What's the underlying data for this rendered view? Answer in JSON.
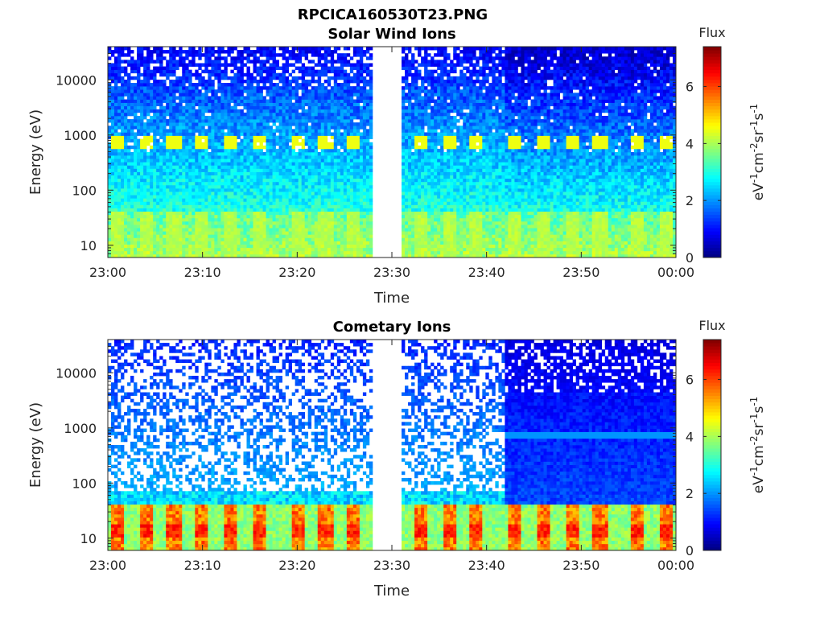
{
  "figure": {
    "title": "RPCICA160530T23.PNG"
  },
  "colormap": "jet",
  "chart_data": [
    {
      "type": "heatmap",
      "title": "Solar Wind Ions",
      "xlabel": "Time",
      "ylabel": "Energy (eV)",
      "x_ticks": [
        "23:00",
        "23:10",
        "23:20",
        "23:30",
        "23:40",
        "23:50",
        "00:00"
      ],
      "xlim": [
        "23:00",
        "00:00"
      ],
      "y_scale": "log",
      "y_ticks": [
        10,
        100,
        1000,
        10000
      ],
      "y_tick_labels": [
        "10",
        "100",
        "1000",
        "10000"
      ],
      "ylim": [
        6,
        40000
      ],
      "data_gap": [
        "23:28",
        "23:31"
      ],
      "colorbar": {
        "title": "Flux",
        "label": "eV-1cm-2sr-1s-1",
        "label_parts": [
          "eV",
          "-1",
          "cm",
          "-2",
          "sr",
          "-1",
          "s",
          "-1"
        ],
        "range": [
          0,
          7.4
        ],
        "ticks": [
          0,
          2,
          4,
          6
        ]
      },
      "features": {
        "periodic_peaks_energy_eV": 700,
        "periodic_peaks_times": [
          "23:01",
          "23:04",
          "23:07",
          "23:10",
          "23:13",
          "23:16",
          "23:20",
          "23:23",
          "23:26",
          "23:33",
          "23:36",
          "23:39",
          "23:43",
          "23:46",
          "23:49",
          "23:52",
          "23:56",
          "23:59"
        ],
        "low_energy_band_eV": [
          6,
          40
        ]
      }
    },
    {
      "type": "heatmap",
      "title": "Cometary Ions",
      "xlabel": "Time",
      "ylabel": "Energy (eV)",
      "x_ticks": [
        "23:00",
        "23:10",
        "23:20",
        "23:30",
        "23:40",
        "23:50",
        "00:00"
      ],
      "xlim": [
        "23:00",
        "00:00"
      ],
      "y_scale": "log",
      "y_ticks": [
        10,
        100,
        1000,
        10000
      ],
      "y_tick_labels": [
        "10",
        "100",
        "1000",
        "10000"
      ],
      "ylim": [
        6,
        40000
      ],
      "data_gap": [
        "23:28",
        "23:31"
      ],
      "colorbar": {
        "title": "Flux",
        "label": "eV-1cm-2sr-1s-1",
        "label_parts": [
          "eV",
          "-1",
          "cm",
          "-2",
          "sr",
          "-1",
          "s",
          "-1"
        ],
        "range": [
          0,
          7.4
        ],
        "ticks": [
          0,
          2,
          4,
          6
        ]
      },
      "features": {
        "periodic_peaks_energy_eV": 14,
        "periodic_peaks_times": [
          "23:01",
          "23:04",
          "23:07",
          "23:10",
          "23:13",
          "23:16",
          "23:20",
          "23:23",
          "23:26",
          "23:33",
          "23:36",
          "23:39",
          "23:43",
          "23:46",
          "23:49",
          "23:52",
          "23:56",
          "23:59"
        ],
        "low_energy_band_eV": [
          6,
          40
        ]
      }
    }
  ]
}
